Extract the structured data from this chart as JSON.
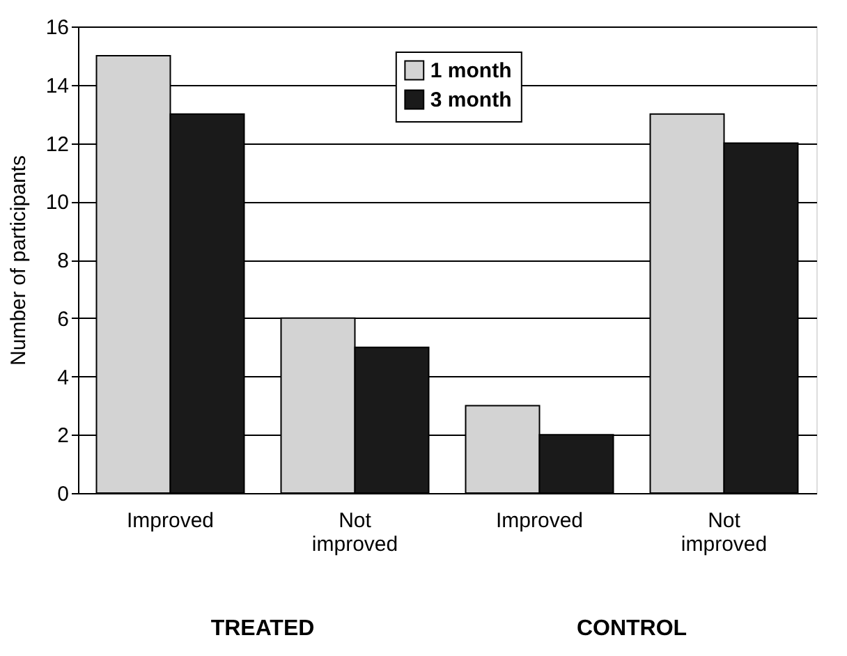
{
  "chart_data": {
    "type": "bar",
    "ylabel": "Number of participants",
    "categories": [
      "Improved",
      "Not improved",
      "Improved",
      "Not improved"
    ],
    "series": [
      {
        "name": "1 month",
        "color": "#d3d3d3",
        "values": [
          15,
          6,
          3,
          13
        ]
      },
      {
        "name": "3 month",
        "color": "#1a1a1a",
        "values": [
          13,
          5,
          2,
          12
        ]
      }
    ],
    "ylim": [
      0,
      16
    ],
    "yticks": [
      0,
      2,
      4,
      6,
      8,
      10,
      12,
      14,
      16
    ],
    "grid": "y",
    "legend": "top",
    "annotations": [
      "TREATED",
      "CONTROL"
    ]
  }
}
